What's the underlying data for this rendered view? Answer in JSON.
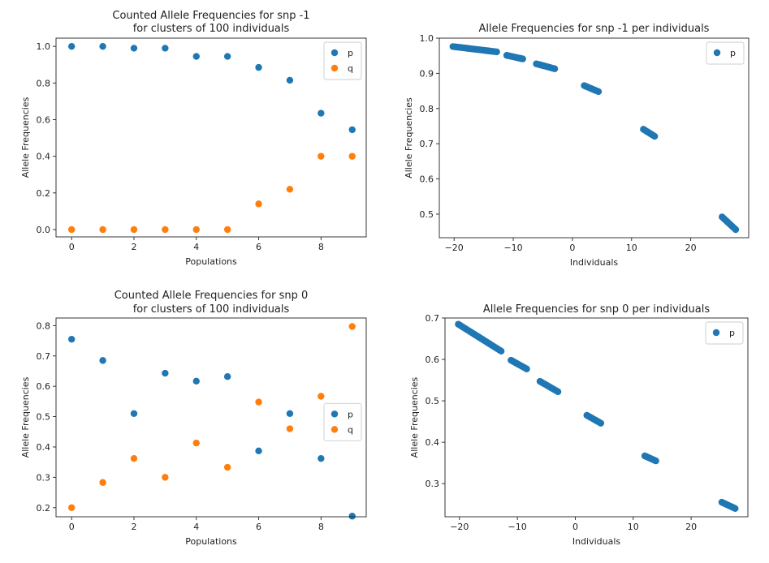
{
  "colors": {
    "p": "#1f77b4",
    "q": "#ff7f0e"
  },
  "chart_data": [
    {
      "type": "scatter",
      "title": [
        "Counted Allele Frequencies for snp -1",
        "for clusters of 100 individuals"
      ],
      "xlabel": "Populations",
      "ylabel": "Allele Frequencies",
      "xlim": [
        -0.5,
        9.45
      ],
      "ylim": [
        -0.04,
        1.045
      ],
      "xticks": [
        0,
        2,
        4,
        6,
        8
      ],
      "yticks": [
        0.0,
        0.2,
        0.4,
        0.6,
        0.8,
        1.0
      ],
      "legend": "top-right",
      "series": [
        {
          "name": "p",
          "color": "#1f77b4",
          "x": [
            0,
            1,
            2,
            3,
            4,
            5,
            6,
            7,
            8,
            9
          ],
          "y": [
            1.0,
            1.0,
            0.99,
            0.99,
            0.945,
            0.945,
            0.885,
            0.815,
            0.635,
            0.545
          ]
        },
        {
          "name": "q",
          "color": "#ff7f0e",
          "x": [
            0,
            1,
            2,
            3,
            4,
            5,
            6,
            7,
            8,
            9
          ],
          "y": [
            0.0,
            0.0,
            0.0,
            0.0,
            0.0,
            0.0,
            0.14,
            0.22,
            0.4,
            0.4
          ]
        }
      ]
    },
    {
      "type": "scatter",
      "title": [
        "Allele Frequencies for snp -1 per individuals"
      ],
      "xlabel": "Individuals",
      "ylabel": "Allele Frequencies",
      "xlim": [
        -22.5,
        29.8
      ],
      "ylim": [
        0.433,
        1.0
      ],
      "xticks": [
        -20,
        -10,
        0,
        10,
        20
      ],
      "yticks": [
        0.5,
        0.6,
        0.7,
        0.8,
        0.9,
        1.0
      ],
      "legend": "top-right",
      "series": [
        {
          "name": "p",
          "color": "#1f77b4",
          "segments": [
            {
              "x0": -20.2,
              "x1": -12.8,
              "y0": 0.976,
              "y1": 0.961
            },
            {
              "x0": -11.1,
              "x1": -8.4,
              "y0": 0.951,
              "y1": 0.941
            },
            {
              "x0": -6.1,
              "x1": -3.0,
              "y0": 0.927,
              "y1": 0.913
            },
            {
              "x0": 2.0,
              "x1": 4.4,
              "y0": 0.865,
              "y1": 0.848
            },
            {
              "x0": 12.0,
              "x1": 13.9,
              "y0": 0.741,
              "y1": 0.721
            },
            {
              "x0": 25.3,
              "x1": 27.6,
              "y0": 0.492,
              "y1": 0.456
            }
          ]
        }
      ]
    },
    {
      "type": "scatter",
      "title": [
        "Counted Allele Frequencies for snp 0",
        "for clusters of 100 individuals"
      ],
      "xlabel": "Populations",
      "ylabel": "Allele Frequencies",
      "xlim": [
        -0.5,
        9.45
      ],
      "ylim": [
        0.17,
        0.825
      ],
      "xticks": [
        0,
        2,
        4,
        6,
        8
      ],
      "yticks": [
        0.2,
        0.3,
        0.4,
        0.5,
        0.6,
        0.7,
        0.8
      ],
      "legend": "middle-right",
      "series": [
        {
          "name": "p",
          "color": "#1f77b4",
          "x": [
            0,
            1,
            2,
            3,
            4,
            5,
            6,
            7,
            8,
            9
          ],
          "y": [
            0.755,
            0.685,
            0.51,
            0.643,
            0.617,
            0.632,
            0.387,
            0.51,
            0.362,
            0.172
          ]
        },
        {
          "name": "q",
          "color": "#ff7f0e",
          "x": [
            0,
            1,
            2,
            3,
            4,
            5,
            6,
            7,
            8,
            9
          ],
          "y": [
            0.2,
            0.283,
            0.362,
            0.3,
            0.413,
            0.333,
            0.548,
            0.46,
            0.567,
            0.797
          ]
        }
      ]
    },
    {
      "type": "scatter",
      "title": [
        "Allele Frequencies for snp 0 per individuals"
      ],
      "xlabel": "Individuals",
      "ylabel": "Allele Frequencies",
      "xlim": [
        -22.5,
        29.8
      ],
      "ylim": [
        0.22,
        0.7
      ],
      "xticks": [
        -20,
        -10,
        0,
        10,
        20
      ],
      "yticks": [
        0.3,
        0.4,
        0.5,
        0.6,
        0.7
      ],
      "legend": "top-right",
      "series": [
        {
          "name": "p",
          "color": "#1f77b4",
          "segments": [
            {
              "x0": -20.2,
              "x1": -12.8,
              "y0": 0.685,
              "y1": 0.62
            },
            {
              "x0": -11.1,
              "x1": -8.4,
              "y0": 0.598,
              "y1": 0.577
            },
            {
              "x0": -6.1,
              "x1": -3.0,
              "y0": 0.547,
              "y1": 0.522
            },
            {
              "x0": 2.0,
              "x1": 4.4,
              "y0": 0.465,
              "y1": 0.446
            },
            {
              "x0": 12.0,
              "x1": 13.9,
              "y0": 0.367,
              "y1": 0.355
            },
            {
              "x0": 25.3,
              "x1": 27.6,
              "y0": 0.255,
              "y1": 0.24
            }
          ]
        }
      ]
    }
  ]
}
